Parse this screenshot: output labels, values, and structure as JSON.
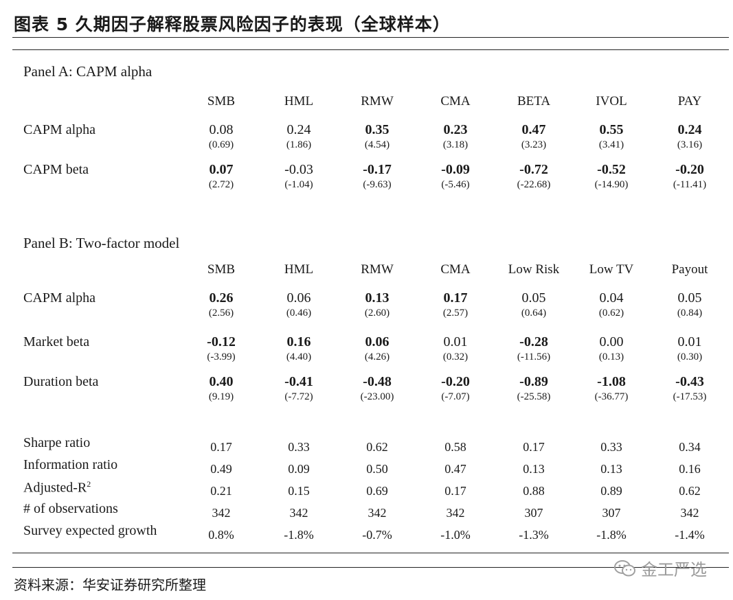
{
  "title": "图表 5 久期因子解释股票风险因子的表现（全球样本）",
  "source": "资料来源：华安证券研究所整理",
  "watermark": "金工严选",
  "panel_a": {
    "label": "Panel A: CAPM alpha",
    "headers": [
      "SMB",
      "HML",
      "RMW",
      "CMA",
      "BETA",
      "IVOL",
      "PAY"
    ],
    "rows": [
      {
        "label": "CAPM alpha",
        "values": [
          "0.08",
          "0.24",
          "0.35",
          "0.23",
          "0.47",
          "0.55",
          "0.24"
        ],
        "bold": [
          false,
          false,
          true,
          true,
          true,
          true,
          true
        ],
        "tstats": [
          "(0.69)",
          "(1.86)",
          "(4.54)",
          "(3.18)",
          "(3.23)",
          "(3.41)",
          "(3.16)"
        ]
      },
      {
        "label": "CAPM beta",
        "values": [
          "0.07",
          "-0.03",
          "-0.17",
          "-0.09",
          "-0.72",
          "-0.52",
          "-0.20"
        ],
        "bold": [
          true,
          false,
          true,
          true,
          true,
          true,
          true
        ],
        "tstats": [
          "(2.72)",
          "(-1.04)",
          "(-9.63)",
          "(-5.46)",
          "(-22.68)",
          "(-14.90)",
          "(-11.41)"
        ]
      }
    ]
  },
  "panel_b": {
    "label": "Panel B: Two-factor model",
    "headers": [
      "SMB",
      "HML",
      "RMW",
      "CMA",
      "Low Risk",
      "Low TV",
      "Payout"
    ],
    "rows": [
      {
        "label": "CAPM alpha",
        "values": [
          "0.26",
          "0.06",
          "0.13",
          "0.17",
          "0.05",
          "0.04",
          "0.05"
        ],
        "bold": [
          true,
          false,
          true,
          true,
          false,
          false,
          false
        ],
        "tstats": [
          "(2.56)",
          "(0.46)",
          "(2.60)",
          "(2.57)",
          "(0.64)",
          "(0.62)",
          "(0.84)"
        ]
      },
      {
        "label": "Market beta",
        "values": [
          "-0.12",
          "0.16",
          "0.06",
          "0.01",
          "-0.28",
          "0.00",
          "0.01"
        ],
        "bold": [
          true,
          true,
          true,
          false,
          true,
          false,
          false
        ],
        "tstats": [
          "(-3.99)",
          "(4.40)",
          "(4.26)",
          "(0.32)",
          "(-11.56)",
          "(0.13)",
          "(0.30)"
        ]
      },
      {
        "label": "Duration beta",
        "values": [
          "0.40",
          "-0.41",
          "-0.48",
          "-0.20",
          "-0.89",
          "-1.08",
          "-0.43"
        ],
        "bold": [
          true,
          true,
          true,
          true,
          true,
          true,
          true
        ],
        "tstats": [
          "(9.19)",
          "(-7.72)",
          "(-23.00)",
          "(-7.07)",
          "(-25.58)",
          "(-36.77)",
          "(-17.53)"
        ]
      }
    ],
    "stats": [
      {
        "label": "Sharpe ratio",
        "values": [
          "0.17",
          "0.33",
          "0.62",
          "0.58",
          "0.17",
          "0.33",
          "0.34"
        ]
      },
      {
        "label": "Information ratio",
        "values": [
          "0.49",
          "0.09",
          "0.50",
          "0.47",
          "0.13",
          "0.13",
          "0.16"
        ]
      },
      {
        "label": "Adjusted-R",
        "sup": "2",
        "values": [
          "0.21",
          "0.15",
          "0.69",
          "0.17",
          "0.88",
          "0.89",
          "0.62"
        ]
      },
      {
        "label": "# of observations",
        "values": [
          "342",
          "342",
          "342",
          "342",
          "307",
          "307",
          "342"
        ]
      },
      {
        "label": "Survey expected growth",
        "values": [
          "0.8%",
          "-1.8%",
          "-0.7%",
          "-1.0%",
          "-1.3%",
          "-1.8%",
          "-1.4%"
        ]
      }
    ]
  }
}
